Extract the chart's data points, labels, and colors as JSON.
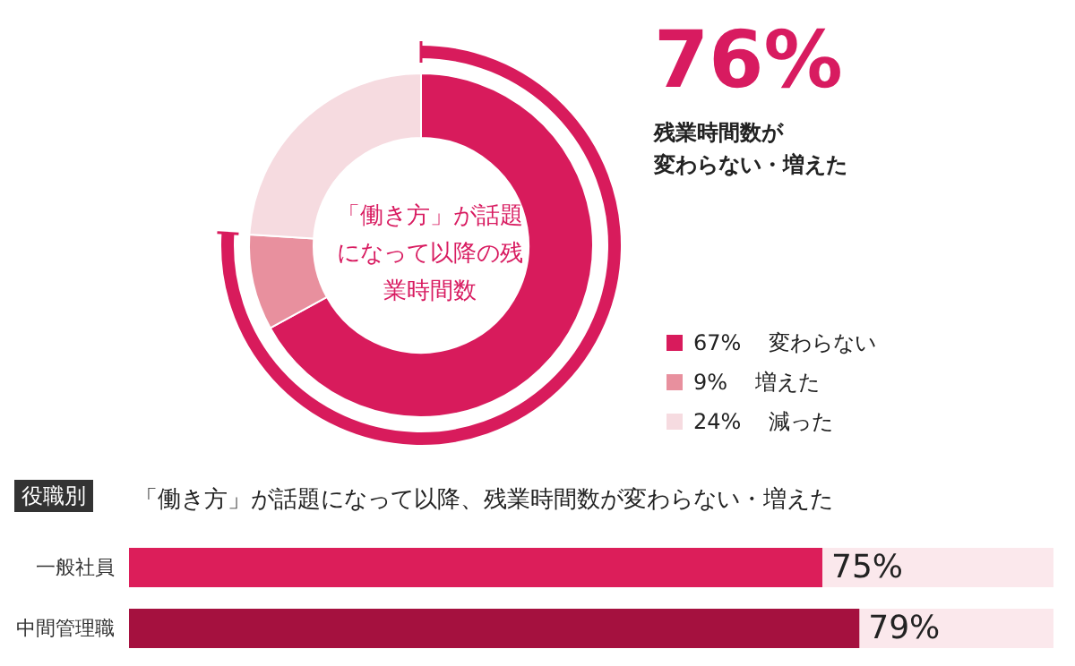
{
  "chart_data": [
    {
      "type": "donut",
      "title": "「働き方」が話題になって以降の残業時間数",
      "categories": [
        "変わらない",
        "増えた",
        "減った"
      ],
      "values": [
        67,
        9,
        24
      ],
      "colors": [
        "#d81b5c",
        "#e8909e",
        "#f6dbe0"
      ],
      "value_labels": [
        "67%",
        "9%",
        "24%"
      ],
      "legend": "right",
      "annotations": [
        "76%",
        "残業時間数が",
        "変わらない・増えた"
      ]
    },
    {
      "type": "bar",
      "orientation": "horizontal",
      "title": "「働き方」が話題になって以降、残業時間数が変わらない・増えた",
      "annotations": [
        "役職別"
      ],
      "categories": [
        "一般社員",
        "中間管理職"
      ],
      "values": [
        75,
        79
      ],
      "colors": [
        "#dc1e5a",
        "#a5113f"
      ],
      "value_labels": [
        "75%",
        "79%"
      ],
      "xlim": [
        0,
        100
      ],
      "tick_labels": "y"
    }
  ]
}
